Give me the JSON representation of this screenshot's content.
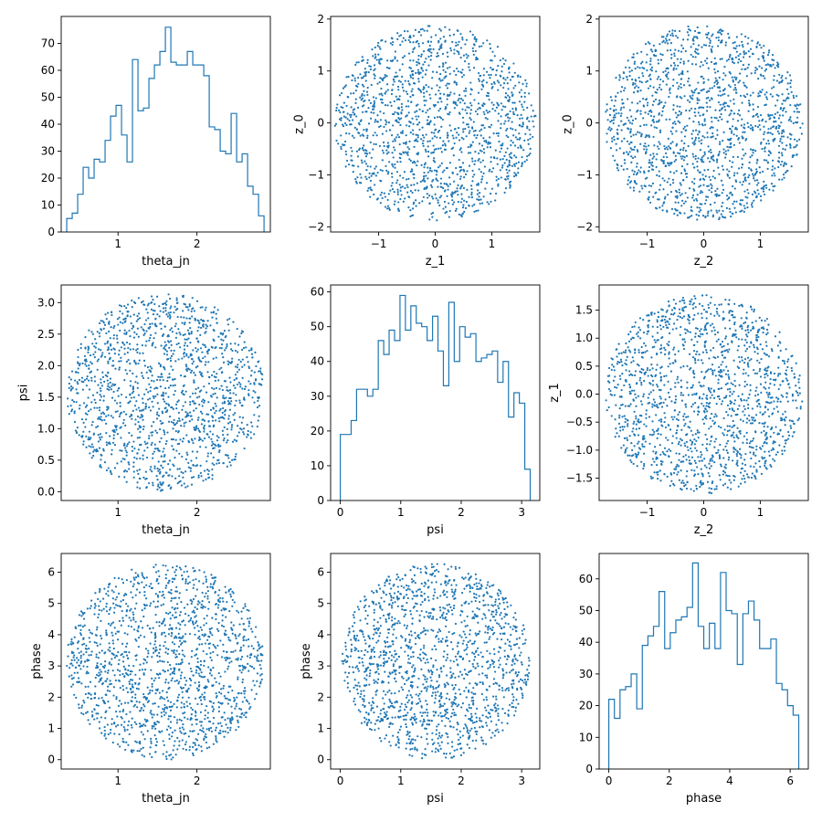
{
  "colors": {
    "series": "#1f77b4",
    "axes": "#000000",
    "background": "#ffffff"
  },
  "chart_data": [
    {
      "type": "histogram",
      "row": 0,
      "col": 0,
      "xlabel": "theta_jn",
      "ylabel": "",
      "xlim": [
        0.28,
        2.93
      ],
      "ylim": [
        0,
        80
      ],
      "xticks": [
        1,
        2
      ],
      "yticks": [
        0,
        10,
        20,
        30,
        40,
        50,
        60,
        70
      ],
      "bin_start": 0.35,
      "bin_end": 2.85,
      "counts": [
        5,
        7,
        14,
        24,
        20,
        27,
        26,
        34,
        43,
        47,
        36,
        26,
        64,
        45,
        46,
        57,
        62,
        67,
        76,
        63,
        62,
        62,
        67,
        62,
        62,
        58,
        39,
        38,
        30,
        29,
        44,
        26,
        29,
        17,
        14,
        6
      ]
    },
    {
      "type": "scatter",
      "row": 0,
      "col": 1,
      "xlabel": "z_1",
      "ylabel": "z_0",
      "xlim": [
        -1.85,
        1.85
      ],
      "ylim": [
        -2.1,
        2.05
      ],
      "xticks": [
        -1,
        0,
        1
      ],
      "yticks": [
        -2,
        -1,
        0,
        1,
        2
      ],
      "sample": {
        "kind": "disk",
        "n": 1500,
        "cx": 0,
        "cy": 0,
        "rx": 1.78,
        "ry": 1.88,
        "seed": 11
      }
    },
    {
      "type": "scatter",
      "row": 0,
      "col": 2,
      "xlabel": "z_2",
      "ylabel": "z_0",
      "xlim": [
        -1.85,
        1.85
      ],
      "ylim": [
        -2.1,
        2.05
      ],
      "xticks": [
        -1,
        0,
        1
      ],
      "yticks": [
        -2,
        -1,
        0,
        1,
        2
      ],
      "sample": {
        "kind": "disk",
        "n": 1500,
        "cx": 0,
        "cy": 0,
        "rx": 1.75,
        "ry": 1.88,
        "seed": 23
      }
    },
    {
      "type": "scatter",
      "row": 1,
      "col": 0,
      "xlabel": "theta_jn",
      "ylabel": "psi",
      "xlim": [
        0.28,
        2.93
      ],
      "ylim": [
        -0.14,
        3.28
      ],
      "xticks": [
        1,
        2
      ],
      "yticks": [
        0.0,
        0.5,
        1.0,
        1.5,
        2.0,
        2.5,
        3.0
      ],
      "ytick_decimals": 1,
      "sample": {
        "kind": "disk",
        "n": 1500,
        "cx": 1.6,
        "cy": 1.57,
        "rx": 1.25,
        "ry": 1.57,
        "seed": 37
      }
    },
    {
      "type": "histogram",
      "row": 1,
      "col": 1,
      "xlabel": "psi",
      "ylabel": "",
      "xlim": [
        -0.16,
        3.3
      ],
      "ylim": [
        0,
        62
      ],
      "xticks": [
        0,
        1,
        2,
        3
      ],
      "yticks": [
        0,
        10,
        20,
        30,
        40,
        50,
        60
      ],
      "bin_start": 0.0,
      "bin_end": 3.1416,
      "counts": [
        19,
        19,
        23,
        32,
        32,
        30,
        32,
        46,
        42,
        49,
        46,
        59,
        49,
        56,
        51,
        50,
        46,
        53,
        43,
        33,
        57,
        40,
        50,
        47,
        48,
        40,
        41,
        42,
        43,
        34,
        40,
        24,
        31,
        28,
        9
      ]
    },
    {
      "type": "scatter",
      "row": 1,
      "col": 2,
      "xlabel": "z_2",
      "ylabel": "z_1",
      "xlim": [
        -1.85,
        1.85
      ],
      "ylim": [
        -1.9,
        1.95
      ],
      "xticks": [
        -1,
        0,
        1
      ],
      "yticks": [
        -1.5,
        -1.0,
        -0.5,
        0.0,
        0.5,
        1.0,
        1.5
      ],
      "ytick_decimals": 1,
      "sample": {
        "kind": "disk",
        "n": 1500,
        "cx": 0,
        "cy": 0,
        "rx": 1.75,
        "ry": 1.78,
        "seed": 51
      }
    },
    {
      "type": "scatter",
      "row": 2,
      "col": 0,
      "xlabel": "theta_jn",
      "ylabel": "phase",
      "xlim": [
        0.28,
        2.93
      ],
      "ylim": [
        -0.3,
        6.6
      ],
      "xticks": [
        1,
        2
      ],
      "yticks": [
        0,
        1,
        2,
        3,
        4,
        5,
        6
      ],
      "sample": {
        "kind": "disk",
        "n": 1500,
        "cx": 1.6,
        "cy": 3.14,
        "rx": 1.25,
        "ry": 3.14,
        "seed": 67
      }
    },
    {
      "type": "scatter",
      "row": 2,
      "col": 1,
      "xlabel": "psi",
      "ylabel": "phase",
      "xlim": [
        -0.16,
        3.3
      ],
      "ylim": [
        -0.3,
        6.6
      ],
      "xticks": [
        0,
        1,
        2,
        3
      ],
      "yticks": [
        0,
        1,
        2,
        3,
        4,
        5,
        6
      ],
      "sample": {
        "kind": "disk",
        "n": 1500,
        "cx": 1.57,
        "cy": 3.14,
        "rx": 1.57,
        "ry": 3.14,
        "seed": 79
      }
    },
    {
      "type": "histogram",
      "row": 2,
      "col": 2,
      "xlabel": "phase",
      "ylabel": "",
      "xlim": [
        -0.32,
        6.6
      ],
      "ylim": [
        0,
        68
      ],
      "xticks": [
        0,
        2,
        4,
        6
      ],
      "yticks": [
        0,
        10,
        20,
        30,
        40,
        50,
        60
      ],
      "bin_start": 0.0,
      "bin_end": 6.2832,
      "counts": [
        22,
        16,
        25,
        26,
        30,
        19,
        39,
        42,
        45,
        56,
        38,
        43,
        47,
        48,
        51,
        65,
        45,
        38,
        46,
        38,
        62,
        50,
        49,
        33,
        49,
        53,
        47,
        38,
        38,
        41,
        27,
        25,
        20,
        17
      ]
    }
  ]
}
